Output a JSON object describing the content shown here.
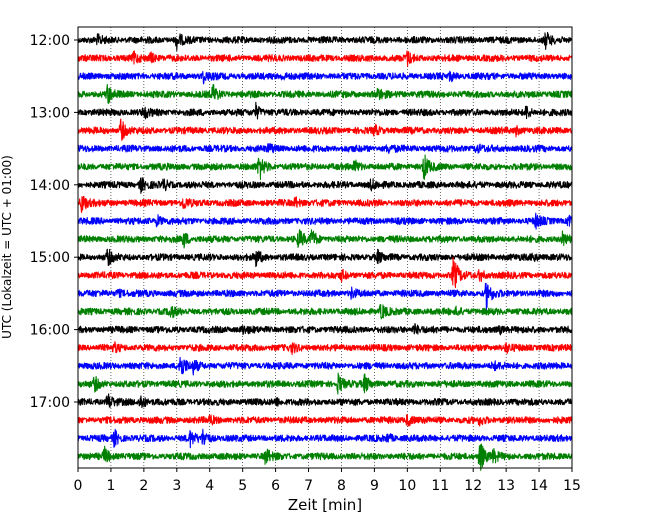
{
  "chart_data": {
    "type": "line",
    "title": "",
    "xlabel": "Zeit  [min]",
    "ylabel": "UTC (Lokalzeit = UTC + 01:00)",
    "xlim": [
      0,
      15
    ],
    "x_ticks": [
      0,
      1,
      2,
      3,
      4,
      5,
      6,
      7,
      8,
      9,
      10,
      11,
      12,
      13,
      14,
      15
    ],
    "y_tick_labels": [
      "12:00",
      "13:00",
      "14:00",
      "15:00",
      "16:00",
      "17:00"
    ],
    "grid": "vertical-dotted",
    "legend": "none",
    "colors": [
      "#000000",
      "#ff0000",
      "#0000ff",
      "#008000"
    ],
    "traces": [
      {
        "start": "12:00",
        "color": "#000000",
        "events": [
          [
            3.0,
            0.9
          ],
          [
            14.2,
            0.8
          ],
          [
            0.6,
            0.4
          ]
        ]
      },
      {
        "start": "12:15",
        "color": "#ff0000",
        "events": [
          [
            1.7,
            0.5
          ],
          [
            2.2,
            0.5
          ],
          [
            10.0,
            0.7
          ]
        ]
      },
      {
        "start": "12:30",
        "color": "#0000ff",
        "events": [
          [
            3.8,
            0.6
          ],
          [
            6.2,
            0.4
          ],
          [
            11.3,
            0.4
          ]
        ]
      },
      {
        "start": "12:45",
        "color": "#008000",
        "events": [
          [
            0.9,
            1.0
          ],
          [
            4.1,
            1.0
          ],
          [
            9.1,
            0.6
          ]
        ]
      },
      {
        "start": "13:00",
        "color": "#000000",
        "events": [
          [
            2.0,
            0.6
          ],
          [
            5.4,
            0.8
          ],
          [
            13.6,
            0.7
          ]
        ]
      },
      {
        "start": "13:15",
        "color": "#ff0000",
        "events": [
          [
            1.3,
            1.2
          ],
          [
            9.0,
            0.5
          ],
          [
            13.3,
            0.4
          ]
        ]
      },
      {
        "start": "13:30",
        "color": "#0000ff",
        "events": [
          [
            5.8,
            0.4
          ],
          [
            9.4,
            0.4
          ],
          [
            12.1,
            0.4
          ]
        ]
      },
      {
        "start": "13:45",
        "color": "#008000",
        "events": [
          [
            5.5,
            1.5
          ],
          [
            8.4,
            0.6
          ],
          [
            10.5,
            1.4
          ]
        ]
      },
      {
        "start": "14:00",
        "color": "#000000",
        "events": [
          [
            1.9,
            0.7
          ],
          [
            2.6,
            0.5
          ],
          [
            8.9,
            0.5
          ]
        ]
      },
      {
        "start": "14:15",
        "color": "#ff0000",
        "events": [
          [
            0.1,
            1.1
          ],
          [
            3.2,
            0.6
          ],
          [
            6.6,
            0.5
          ]
        ]
      },
      {
        "start": "14:30",
        "color": "#0000ff",
        "events": [
          [
            2.4,
            0.6
          ],
          [
            13.9,
            0.7
          ],
          [
            14.9,
            0.8
          ]
        ]
      },
      {
        "start": "14:45",
        "color": "#008000",
        "events": [
          [
            3.2,
            0.9
          ],
          [
            6.7,
            1.0
          ],
          [
            7.1,
            0.9
          ],
          [
            14.7,
            0.7
          ]
        ]
      },
      {
        "start": "15:00",
        "color": "#000000",
        "events": [
          [
            0.9,
            0.8
          ],
          [
            5.4,
            0.9
          ],
          [
            9.1,
            0.6
          ],
          [
            13.8,
            0.4
          ]
        ]
      },
      {
        "start": "15:15",
        "color": "#ff0000",
        "events": [
          [
            8.0,
            0.5
          ],
          [
            11.4,
            2.0
          ],
          [
            12.2,
            0.6
          ]
        ]
      },
      {
        "start": "15:30",
        "color": "#0000ff",
        "events": [
          [
            1.2,
            0.4
          ],
          [
            8.3,
            0.5
          ],
          [
            12.4,
            1.6
          ]
        ]
      },
      {
        "start": "15:45",
        "color": "#008000",
        "events": [
          [
            2.8,
            0.6
          ],
          [
            9.2,
            0.9
          ],
          [
            11.5,
            0.4
          ]
        ]
      },
      {
        "start": "16:00",
        "color": "#000000",
        "events": [
          [
            5.0,
            0.4
          ],
          [
            10.2,
            0.6
          ],
          [
            12.8,
            0.4
          ]
        ]
      },
      {
        "start": "16:15",
        "color": "#ff0000",
        "events": [
          [
            1.1,
            0.4
          ],
          [
            6.5,
            0.4
          ],
          [
            13.0,
            0.4
          ]
        ]
      },
      {
        "start": "16:30",
        "color": "#0000ff",
        "events": [
          [
            3.1,
            1.5
          ],
          [
            3.5,
            0.6
          ],
          [
            12.6,
            0.4
          ]
        ]
      },
      {
        "start": "16:45",
        "color": "#008000",
        "events": [
          [
            0.5,
            0.7
          ],
          [
            7.9,
            1.1
          ],
          [
            8.7,
            0.9
          ]
        ]
      },
      {
        "start": "17:00",
        "color": "#000000",
        "events": [
          [
            0.9,
            0.9
          ],
          [
            1.9,
            0.8
          ],
          [
            6.0,
            0.4
          ]
        ]
      },
      {
        "start": "17:15",
        "color": "#ff0000",
        "events": [
          [
            4.0,
            0.4
          ],
          [
            10.0,
            0.6
          ],
          [
            12.2,
            0.4
          ]
        ]
      },
      {
        "start": "17:30",
        "color": "#0000ff",
        "events": [
          [
            1.1,
            0.8
          ],
          [
            3.4,
            0.8
          ],
          [
            3.8,
            0.9
          ],
          [
            9.4,
            0.4
          ]
        ]
      },
      {
        "start": "17:45",
        "color": "#008000",
        "events": [
          [
            0.8,
            0.9
          ],
          [
            5.7,
            0.8
          ],
          [
            12.2,
            1.8
          ],
          [
            12.6,
            0.6
          ]
        ]
      }
    ]
  }
}
